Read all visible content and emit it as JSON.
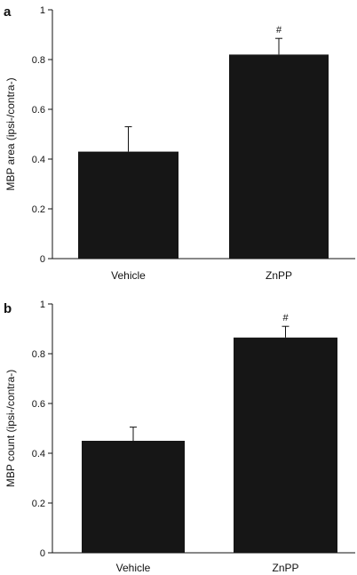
{
  "chart_data": [
    {
      "panel_label": "a",
      "type": "bar",
      "ylabel": "MBP area (ipsi-/contra-)",
      "ylim": [
        0,
        1
      ],
      "yticks": [
        "0",
        "0.2",
        "0.4",
        "0.6",
        "0.8",
        "1"
      ],
      "categories": [
        "Vehicle",
        "ZnPP"
      ],
      "values": [
        0.43,
        0.82
      ],
      "errors": [
        0.1,
        0.065
      ],
      "annotations": [
        "",
        "#"
      ],
      "bar_color": "#161616"
    },
    {
      "panel_label": "b",
      "type": "bar",
      "ylabel": "MBP count (ipsi-/contra-)",
      "ylim": [
        0,
        1
      ],
      "yticks": [
        "0",
        "0.2",
        "0.4",
        "0.6",
        "0.8",
        "1"
      ],
      "categories": [
        "Vehicle",
        "ZnPP"
      ],
      "values": [
        0.45,
        0.865
      ],
      "errors": [
        0.055,
        0.045
      ],
      "annotations": [
        "",
        "#"
      ],
      "bar_color": "#161616"
    }
  ]
}
